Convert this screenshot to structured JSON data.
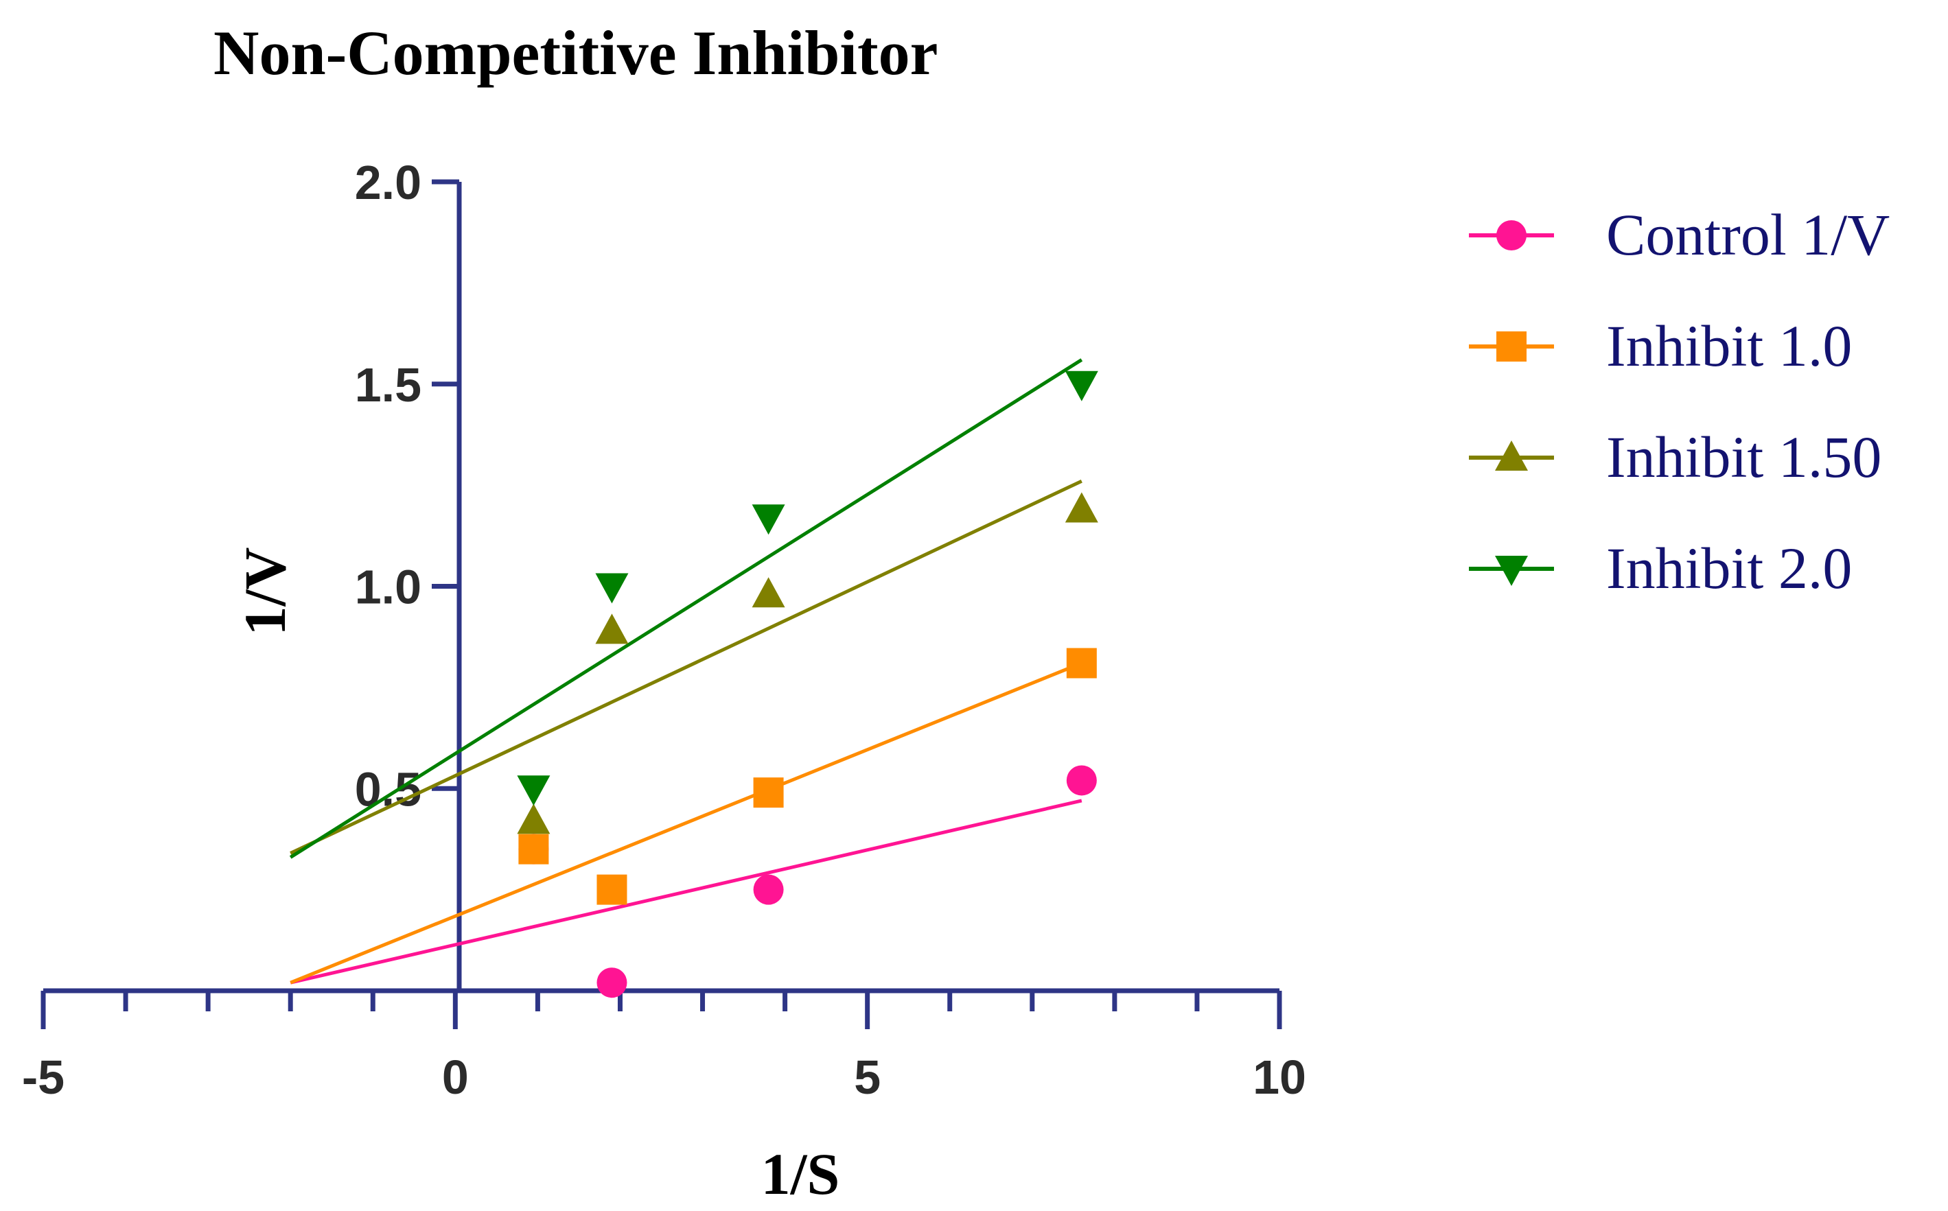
{
  "chart_data": {
    "type": "scatter",
    "title": "Non-Competitive Inhibitor",
    "xlabel": "1/S",
    "ylabel": "1/V",
    "xlim": [
      -5,
      10
    ],
    "ylim": [
      0,
      2.0
    ],
    "x_ticks": [
      -5,
      0,
      5,
      10
    ],
    "x_tick_labels": [
      "-5",
      "0",
      "5",
      "10"
    ],
    "y_ticks": [
      0.5,
      1.0,
      1.5,
      2.0
    ],
    "y_tick_labels": [
      "0.5",
      "1.0",
      "1.5",
      "2.0"
    ],
    "x_minor_step": 1,
    "legend_position": "right",
    "series": [
      {
        "name": "Control 1/V",
        "color": "#ff1493",
        "marker": "circle",
        "points": [
          [
            0.95,
            0.35
          ],
          [
            1.9,
            0.02
          ],
          [
            3.8,
            0.25
          ],
          [
            7.6,
            0.52
          ]
        ],
        "fit": [
          [
            -2.0,
            0.02
          ],
          [
            7.6,
            0.47
          ]
        ]
      },
      {
        "name": "Inhibit 1.0",
        "color": "#ff8c00",
        "marker": "square",
        "points": [
          [
            0.95,
            0.35
          ],
          [
            1.9,
            0.25
          ],
          [
            3.8,
            0.49
          ],
          [
            7.6,
            0.81
          ]
        ],
        "fit": [
          [
            -2.0,
            0.02
          ],
          [
            7.6,
            0.81
          ]
        ]
      },
      {
        "name": "Inhibit 1.50",
        "color": "#808000",
        "marker": "triangle-up",
        "points": [
          [
            0.95,
            0.42
          ],
          [
            1.9,
            0.89
          ],
          [
            3.8,
            0.98
          ],
          [
            7.6,
            1.19
          ]
        ],
        "fit": [
          [
            -2.0,
            0.34
          ],
          [
            7.6,
            1.26
          ]
        ]
      },
      {
        "name": "Inhibit 2.0",
        "color": "#008000",
        "marker": "triangle-down",
        "points": [
          [
            0.95,
            0.5
          ],
          [
            1.9,
            1.0
          ],
          [
            3.8,
            1.17
          ],
          [
            7.6,
            1.5
          ]
        ],
        "fit": [
          [
            -2.0,
            0.33
          ],
          [
            7.6,
            1.56
          ]
        ]
      }
    ]
  },
  "colors": {
    "axis": "#2e3586",
    "legend_text": "#131370"
  }
}
